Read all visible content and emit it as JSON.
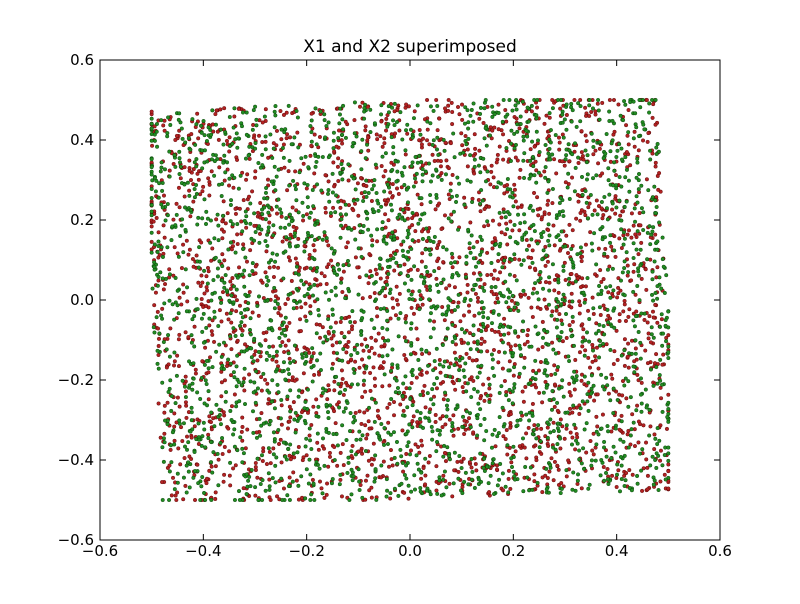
{
  "chart_data": {
    "type": "scatter",
    "title": "X1 and X2 superimposed",
    "xlabel": "",
    "ylabel": "",
    "xlim": [
      -0.6,
      0.6
    ],
    "ylim": [
      -0.6,
      0.6
    ],
    "x_ticks": [
      -0.6,
      -0.4,
      -0.2,
      0.0,
      0.2,
      0.4,
      0.6
    ],
    "y_ticks": [
      -0.6,
      -0.4,
      -0.2,
      0.0,
      0.2,
      0.4,
      0.6
    ],
    "x_tick_labels": [
      "−0.6",
      "−0.4",
      "−0.2",
      "0.0",
      "0.2",
      "0.4",
      "0.6"
    ],
    "y_tick_labels": [
      "−0.6",
      "−0.4",
      "−0.2",
      "0.0",
      "0.2",
      "0.4",
      "0.6"
    ],
    "grid": false,
    "legend": "none",
    "point_domain": {
      "x": [
        -0.5,
        0.5
      ],
      "y": [
        -0.5,
        0.5
      ]
    },
    "series": [
      {
        "color": "#b22222",
        "edge_color": "#4d0000",
        "points_per_series": 2500,
        "rotation_field": "swirl"
      },
      {
        "color": "#228b22",
        "edge_color": "#003300",
        "points_per_series": 2500,
        "rotation_field": "swirl"
      }
    ]
  }
}
